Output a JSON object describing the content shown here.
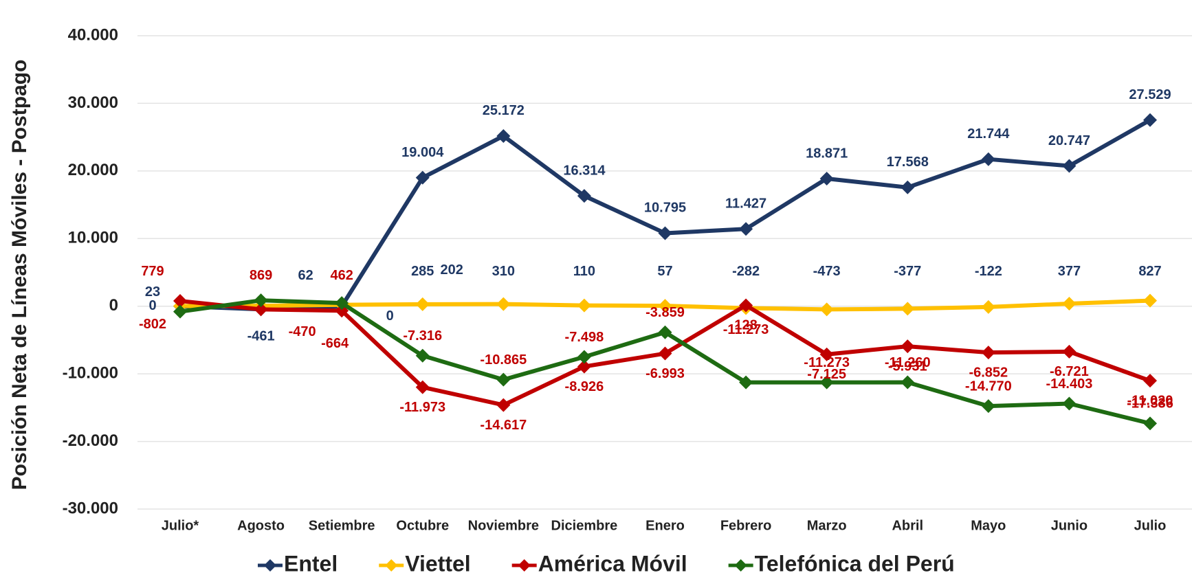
{
  "chart_data": {
    "type": "line",
    "y_label": "Posición Neta de Líneas Móviles - Postpago",
    "categories": [
      "Julio*",
      "Agosto",
      "Setiembre",
      "Octubre",
      "Noviembre",
      "Diciembre",
      "Enero",
      "Febrero",
      "Marzo",
      "Abril",
      "Mayo",
      "Junio",
      "Julio"
    ],
    "series": [
      {
        "name": "Entel",
        "color": "#1f3864",
        "label_color": "#1f3864",
        "values": [
          0,
          -461,
          0,
          19004,
          25172,
          16314,
          10795,
          11427,
          18871,
          17568,
          21744,
          20747,
          27529
        ],
        "value_labels": [
          "0",
          "-461",
          "0",
          "19.004",
          "25.172",
          "16.314",
          "10.795",
          "11.427",
          "18.871",
          "17.568",
          "21.744",
          "20.747",
          "27.529"
        ]
      },
      {
        "name": "Viettel",
        "color": "#ffc000",
        "label_color": "#1f3864",
        "values": [
          23,
          62,
          202,
          285,
          310,
          110,
          57,
          -282,
          -473,
          -377,
          -122,
          377,
          827
        ],
        "value_labels": [
          "23",
          "62",
          "202",
          "285",
          "310",
          "110",
          "57",
          "-282",
          "-473",
          "-377",
          "-122",
          "377",
          "827"
        ]
      },
      {
        "name": "América Móvil",
        "color": "#c00000",
        "label_color": "#c00000",
        "values": [
          779,
          -470,
          -664,
          -11973,
          -14617,
          -8926,
          -6993,
          128,
          -7125,
          -5931,
          -6852,
          -6721,
          -11020
        ],
        "value_labels": [
          "779",
          "-470",
          "-664",
          "-11.973",
          "-14.617",
          "-8.926",
          "-6.993",
          "128",
          "-7.125",
          "-5.931",
          "-6.852",
          "-6.721",
          "-11.020"
        ]
      },
      {
        "name": "Telefónica del Perú",
        "color": "#1e6b12",
        "label_color": "#c00000",
        "values": [
          -802,
          869,
          462,
          -7316,
          -10865,
          -7498,
          -3859,
          -11273,
          -11273,
          -11260,
          -14770,
          -14403,
          -17336
        ],
        "value_labels": [
          "-802",
          "869",
          "462",
          "-7.316",
          "-10.865",
          "-7.498",
          "-3.859",
          "-11.273",
          "-11.273",
          "-11.260",
          "-14.770",
          "-14.403",
          "-17.336"
        ]
      }
    ],
    "ylim": [
      -30000,
      40000
    ],
    "yticks": [
      {
        "value": -30000,
        "label": "-30.000"
      },
      {
        "value": -20000,
        "label": "-20.000"
      },
      {
        "value": -10000,
        "label": "-10.000"
      },
      0,
      {
        "value": 10000,
        "label": "10.000"
      },
      {
        "value": 20000,
        "label": "20.000"
      },
      {
        "value": 30000,
        "label": "30.000"
      },
      {
        "value": 40000,
        "label": "40.000"
      }
    ],
    "grid": true,
    "legend": "bottom"
  }
}
